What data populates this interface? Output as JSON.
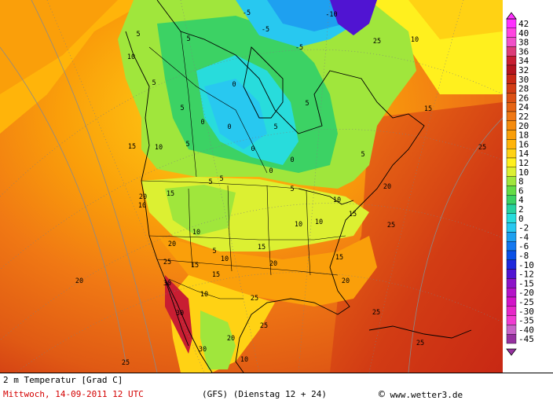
{
  "map": {
    "title": "2 m Temperatur [Grad C]",
    "valid_time": "Mittwoch, 14-09-2011  12 UTC",
    "model_run": "(GFS)  (Dienstag 12 + 24)",
    "credit": "www.wetter3.de",
    "credit_symbol": "©"
  },
  "legend": {
    "levels": [
      "42",
      "40",
      "38",
      "36",
      "34",
      "32",
      "30",
      "28",
      "26",
      "24",
      "22",
      "20",
      "18",
      "16",
      "14",
      "12",
      "10",
      "8",
      "6",
      "4",
      "2",
      "0",
      "-2",
      "-4",
      "-6",
      "-8",
      "-10",
      "-12",
      "-15",
      "-20",
      "-25",
      "-30",
      "-35",
      "-40",
      "-45"
    ],
    "colors": [
      "#ff30ff",
      "#ff44e0",
      "#f050c8",
      "#dc3c78",
      "#c81e32",
      "#b4141e",
      "#c82814",
      "#d23c14",
      "#dc5014",
      "#e66414",
      "#f07814",
      "#f58c0f",
      "#fa9f0a",
      "#ffb40a",
      "#ffd214",
      "#fff01e",
      "#dcf032",
      "#a0e63c",
      "#64dc46",
      "#3cd264",
      "#28d2a0",
      "#28dcdc",
      "#28c8f0",
      "#1ea0f0",
      "#1478f0",
      "#0a50e6",
      "#1e28dc",
      "#5014d2",
      "#8c14c8",
      "#b414c8",
      "#d214c8",
      "#e628c8",
      "#f03cd2",
      "#c864c8",
      "#9632a0"
    ]
  },
  "contour_labels": [
    {
      "text": "-5"
    },
    {
      "text": "-5"
    },
    {
      "text": "-10"
    },
    {
      "text": "-5"
    },
    {
      "text": "10"
    },
    {
      "text": "5"
    },
    {
      "text": "5"
    },
    {
      "text": "10"
    },
    {
      "text": "5"
    },
    {
      "text": "0"
    },
    {
      "text": "5"
    },
    {
      "text": "0"
    },
    {
      "text": "0"
    },
    {
      "text": "5"
    },
    {
      "text": "5"
    },
    {
      "text": "0"
    },
    {
      "text": "0"
    },
    {
      "text": "15"
    },
    {
      "text": "15"
    },
    {
      "text": "10"
    },
    {
      "text": "5"
    },
    {
      "text": "5"
    },
    {
      "text": "5"
    },
    {
      "text": "0"
    },
    {
      "text": "5"
    },
    {
      "text": "15"
    },
    {
      "text": "25"
    },
    {
      "text": "20"
    },
    {
      "text": "10"
    },
    {
      "text": "10"
    },
    {
      "text": "15"
    },
    {
      "text": "25"
    },
    {
      "text": "10"
    },
    {
      "text": "10"
    },
    {
      "text": "10"
    },
    {
      "text": "20"
    },
    {
      "text": "5"
    },
    {
      "text": "10"
    },
    {
      "text": "15"
    },
    {
      "text": "20"
    },
    {
      "text": "15"
    },
    {
      "text": "15"
    },
    {
      "text": "25"
    },
    {
      "text": "20"
    },
    {
      "text": "30"
    },
    {
      "text": "15"
    },
    {
      "text": "30"
    },
    {
      "text": "20"
    },
    {
      "text": "25"
    },
    {
      "text": "25"
    },
    {
      "text": "25"
    },
    {
      "text": "30"
    },
    {
      "text": "20"
    },
    {
      "text": "10"
    },
    {
      "text": "25"
    },
    {
      "text": "25"
    },
    {
      "text": "10"
    },
    {
      "text": "20"
    },
    {
      "text": "25"
    },
    {
      "text": "5"
    }
  ]
}
